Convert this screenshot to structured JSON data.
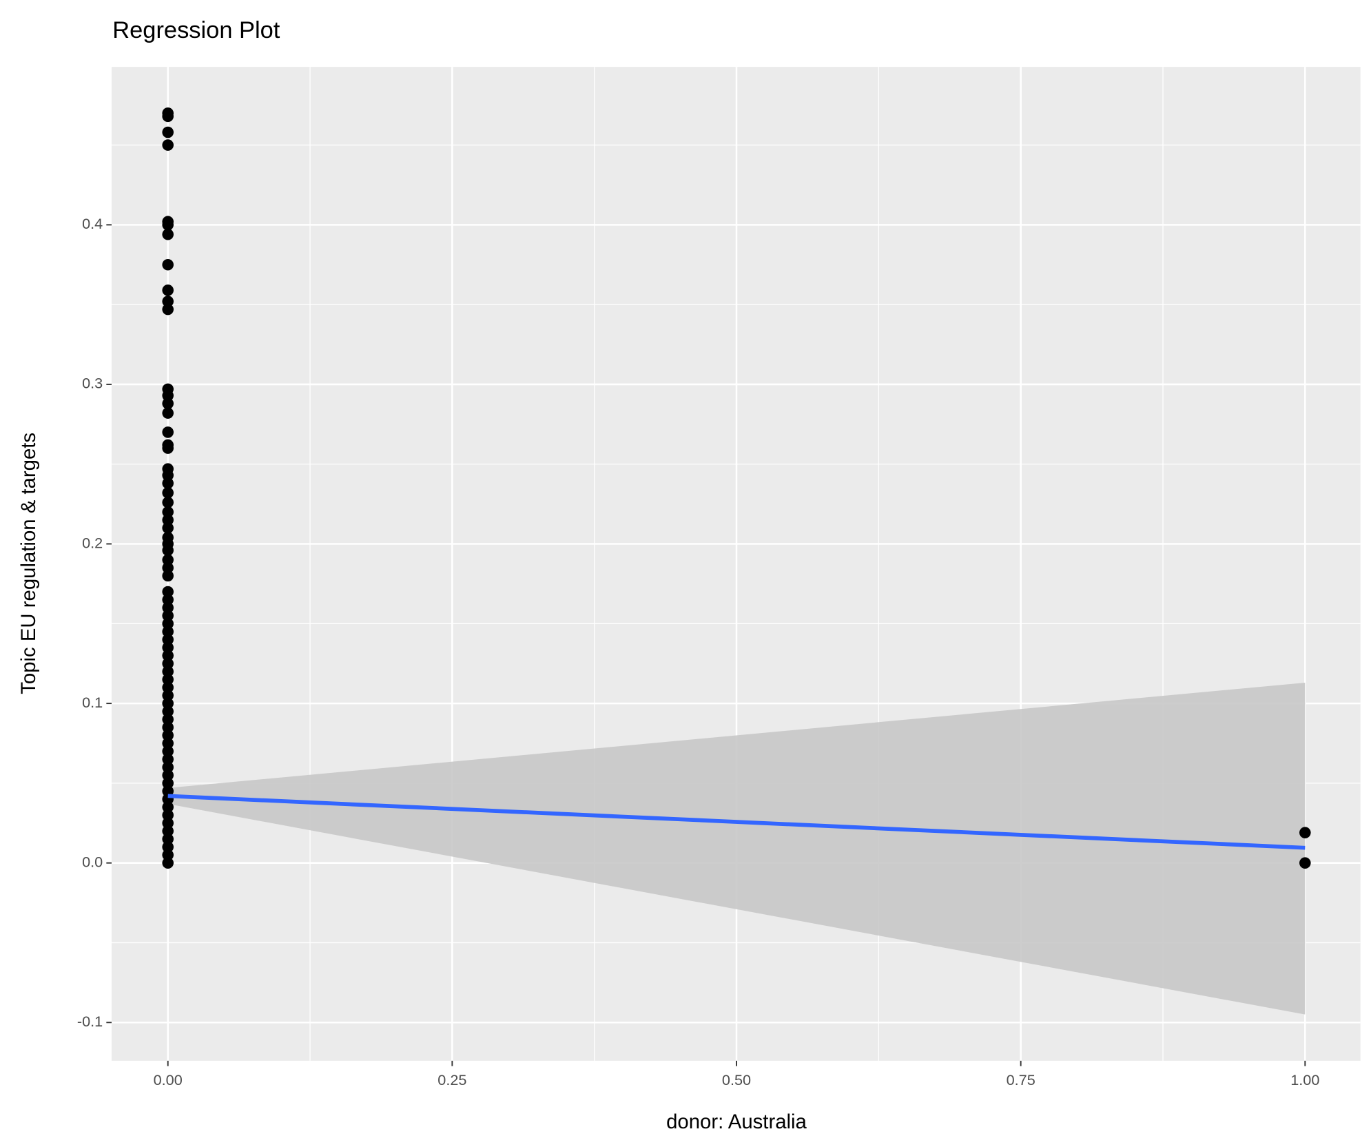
{
  "chart_data": {
    "type": "scatter",
    "title": "Regression Plot",
    "x_label": "donor: Australia",
    "y_label": "Topic EU regulation & targets",
    "xlim": [
      -0.0495,
      1.0487
    ],
    "ylim": [
      -0.124,
      0.499
    ],
    "xticks": [
      {
        "value": 0,
        "label": "0.00"
      },
      {
        "value": 0.25,
        "label": "0.25"
      },
      {
        "value": 0.5,
        "label": "0.50"
      },
      {
        "value": 0.75,
        "label": "0.75"
      },
      {
        "value": 1,
        "label": "1.00"
      }
    ],
    "yticks": [
      -0.1,
      {
        "value": 0,
        "label": "0.0"
      },
      0.1,
      0.2,
      0.3,
      0.4
    ],
    "x_minor_ticks": [
      0.125,
      0.375,
      0.625,
      0.875
    ],
    "y_minor_ticks": [
      -0.05,
      0.05,
      0.15,
      0.25,
      0.35,
      0.45
    ],
    "grid": true,
    "points": {
      "color": "#000000",
      "x": [
        0,
        0,
        0,
        0,
        0,
        0,
        0,
        0,
        0,
        0,
        0,
        0,
        0,
        0,
        0,
        0,
        0,
        0,
        0,
        0,
        0,
        0,
        0,
        0,
        0,
        0,
        0,
        0,
        0,
        0,
        0,
        0,
        0,
        0,
        0,
        0,
        0,
        0,
        0,
        0,
        0,
        0,
        0,
        0,
        0,
        0,
        0,
        0,
        0,
        0,
        0,
        0,
        0,
        0,
        0,
        0,
        0,
        0,
        0,
        0,
        0,
        0,
        0,
        0,
        0,
        0,
        0,
        1,
        1
      ],
      "y": [
        0.47,
        0.468,
        0.458,
        0.45,
        0.402,
        0.4,
        0.394,
        0.375,
        0.359,
        0.352,
        0.347,
        0.297,
        0.293,
        0.288,
        0.282,
        0.27,
        0.262,
        0.26,
        0.247,
        0.243,
        0.238,
        0.232,
        0.226,
        0.22,
        0.215,
        0.21,
        0.204,
        0.2,
        0.196,
        0.19,
        0.185,
        0.18,
        0.17,
        0.165,
        0.16,
        0.155,
        0.15,
        0.145,
        0.14,
        0.135,
        0.13,
        0.125,
        0.12,
        0.115,
        0.11,
        0.105,
        0.1,
        0.095,
        0.09,
        0.085,
        0.08,
        0.075,
        0.07,
        0.065,
        0.06,
        0.055,
        0.05,
        0.045,
        0.04,
        0.035,
        0.03,
        0.025,
        0.02,
        0.015,
        0.01,
        0.005,
        0,
        0.019,
        0
      ]
    },
    "fit": {
      "color": "#3366FF",
      "band_color": "#c8c8c8",
      "x": [
        0,
        1
      ],
      "y": [
        0.042,
        0.0095
      ],
      "lower": [
        0.037,
        -0.095
      ],
      "upper": [
        0.047,
        0.113
      ]
    }
  }
}
